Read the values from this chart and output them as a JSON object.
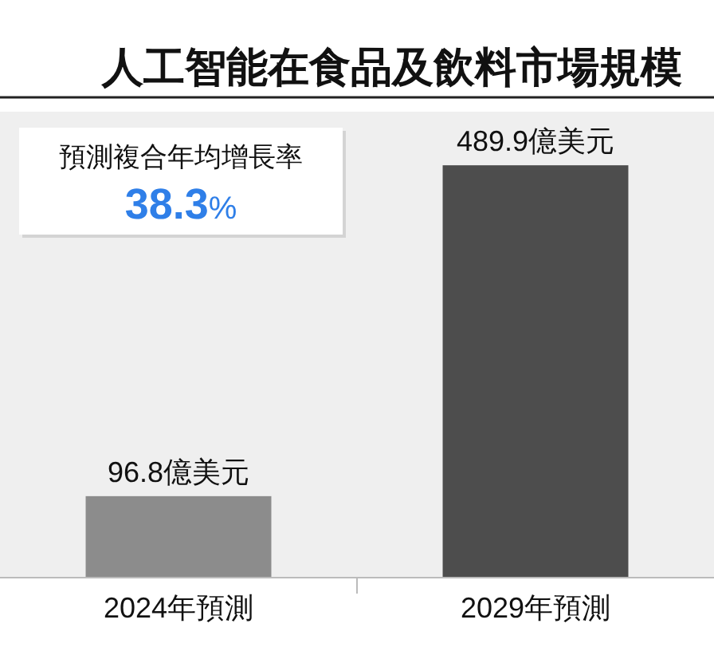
{
  "chart_data": {
    "type": "bar",
    "title": "人工智能在食品及飲料市場規模",
    "categories": [
      "2024年預測",
      "2029年預測"
    ],
    "values": [
      96.8,
      489.9
    ],
    "colors": [
      "#8c8c8c",
      "#4d4d4d"
    ],
    "value_labels": [
      "96.8億美元",
      "489.9億美元"
    ],
    "annotations": [
      "預測複合年均增長率",
      "38.3%"
    ]
  }
}
